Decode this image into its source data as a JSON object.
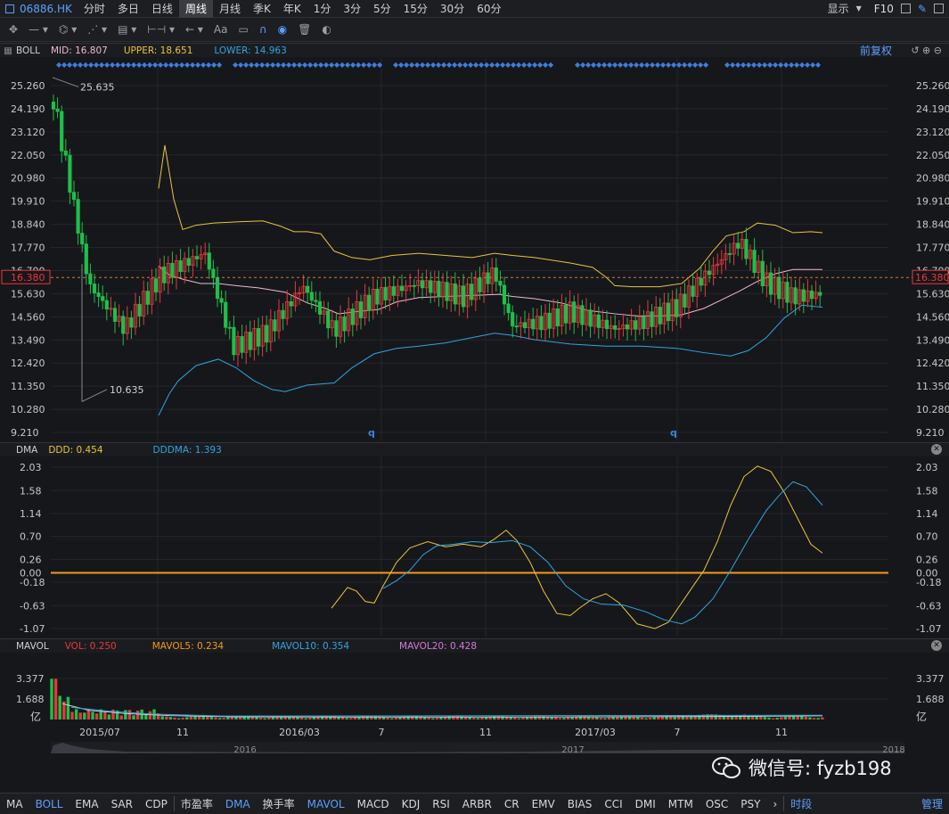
{
  "top": {
    "code": "06886.HK",
    "tabs": [
      "分时",
      "多日",
      "日线",
      "周线",
      "月线",
      "季K",
      "年K",
      "1分",
      "3分",
      "5分",
      "15分",
      "30分",
      "60分"
    ],
    "active": "周线",
    "show": "显示",
    "f10": "F10"
  },
  "tools": {
    "text_tool": "Aa"
  },
  "boll": {
    "name": "BOLL",
    "mid": "MID: 16.807",
    "upper": "UPPER: 18.651",
    "lower": "LOWER: 14.963",
    "right_label": "前复权",
    "high_label": "25.635",
    "low_label": "10.635",
    "current_price": "16.380",
    "yticks": [
      "25.260",
      "24.190",
      "23.120",
      "22.050",
      "20.980",
      "19.910",
      "18.840",
      "17.770",
      "16.700",
      "15.630",
      "14.560",
      "13.490",
      "12.420",
      "11.350",
      "10.280",
      "9.210"
    ],
    "q_marker": "q"
  },
  "dma": {
    "name": "DMA",
    "ddd": "DDD: 0.454",
    "dddma": "DDDMA: 1.393",
    "yticks": [
      "2.03",
      "1.58",
      "1.14",
      "0.70",
      "0.26",
      "0.00",
      "-0.18",
      "-0.63",
      "-1.07"
    ]
  },
  "mavol": {
    "name": "MAVOL",
    "vol": "VOL: 0.250",
    "m5": "MAVOL5: 0.234",
    "m10": "MAVOL10: 0.354",
    "m20": "MAVOL20: 0.428",
    "yticks": [
      "3.377",
      "1.688"
    ],
    "unit": "亿"
  },
  "xaxis": [
    "2015/07",
    "11",
    "2016/03",
    "7",
    "11",
    "2017/03",
    "7",
    "11"
  ],
  "overview": {
    "years": [
      "2016",
      "2017",
      "2018"
    ]
  },
  "bottom": {
    "items": [
      "MA",
      "BOLL",
      "EMA",
      "SAR",
      "CDP",
      "市盈率",
      "DMA",
      "换手率",
      "MAVOL",
      "MACD",
      "KDJ",
      "RSI",
      "ARBR",
      "CR",
      "EMV",
      "BIAS",
      "CCI",
      "DMI",
      "MTM",
      "OSC",
      "PSY"
    ],
    "active": [
      "BOLL",
      "DMA",
      "MAVOL"
    ],
    "timeseg": "时段",
    "manage": "管理"
  },
  "watermark": "微信号: fyzb198",
  "colors": {
    "up": "#e8383c",
    "down": "#1fbf4a",
    "upper": "#e8c43c",
    "lower": "#2fa5e0",
    "mid": "#f0b8d0",
    "dma_ddd": "#e8c43c",
    "dma_ma": "#2fa5e0",
    "zero": "#f29a1a"
  }
}
